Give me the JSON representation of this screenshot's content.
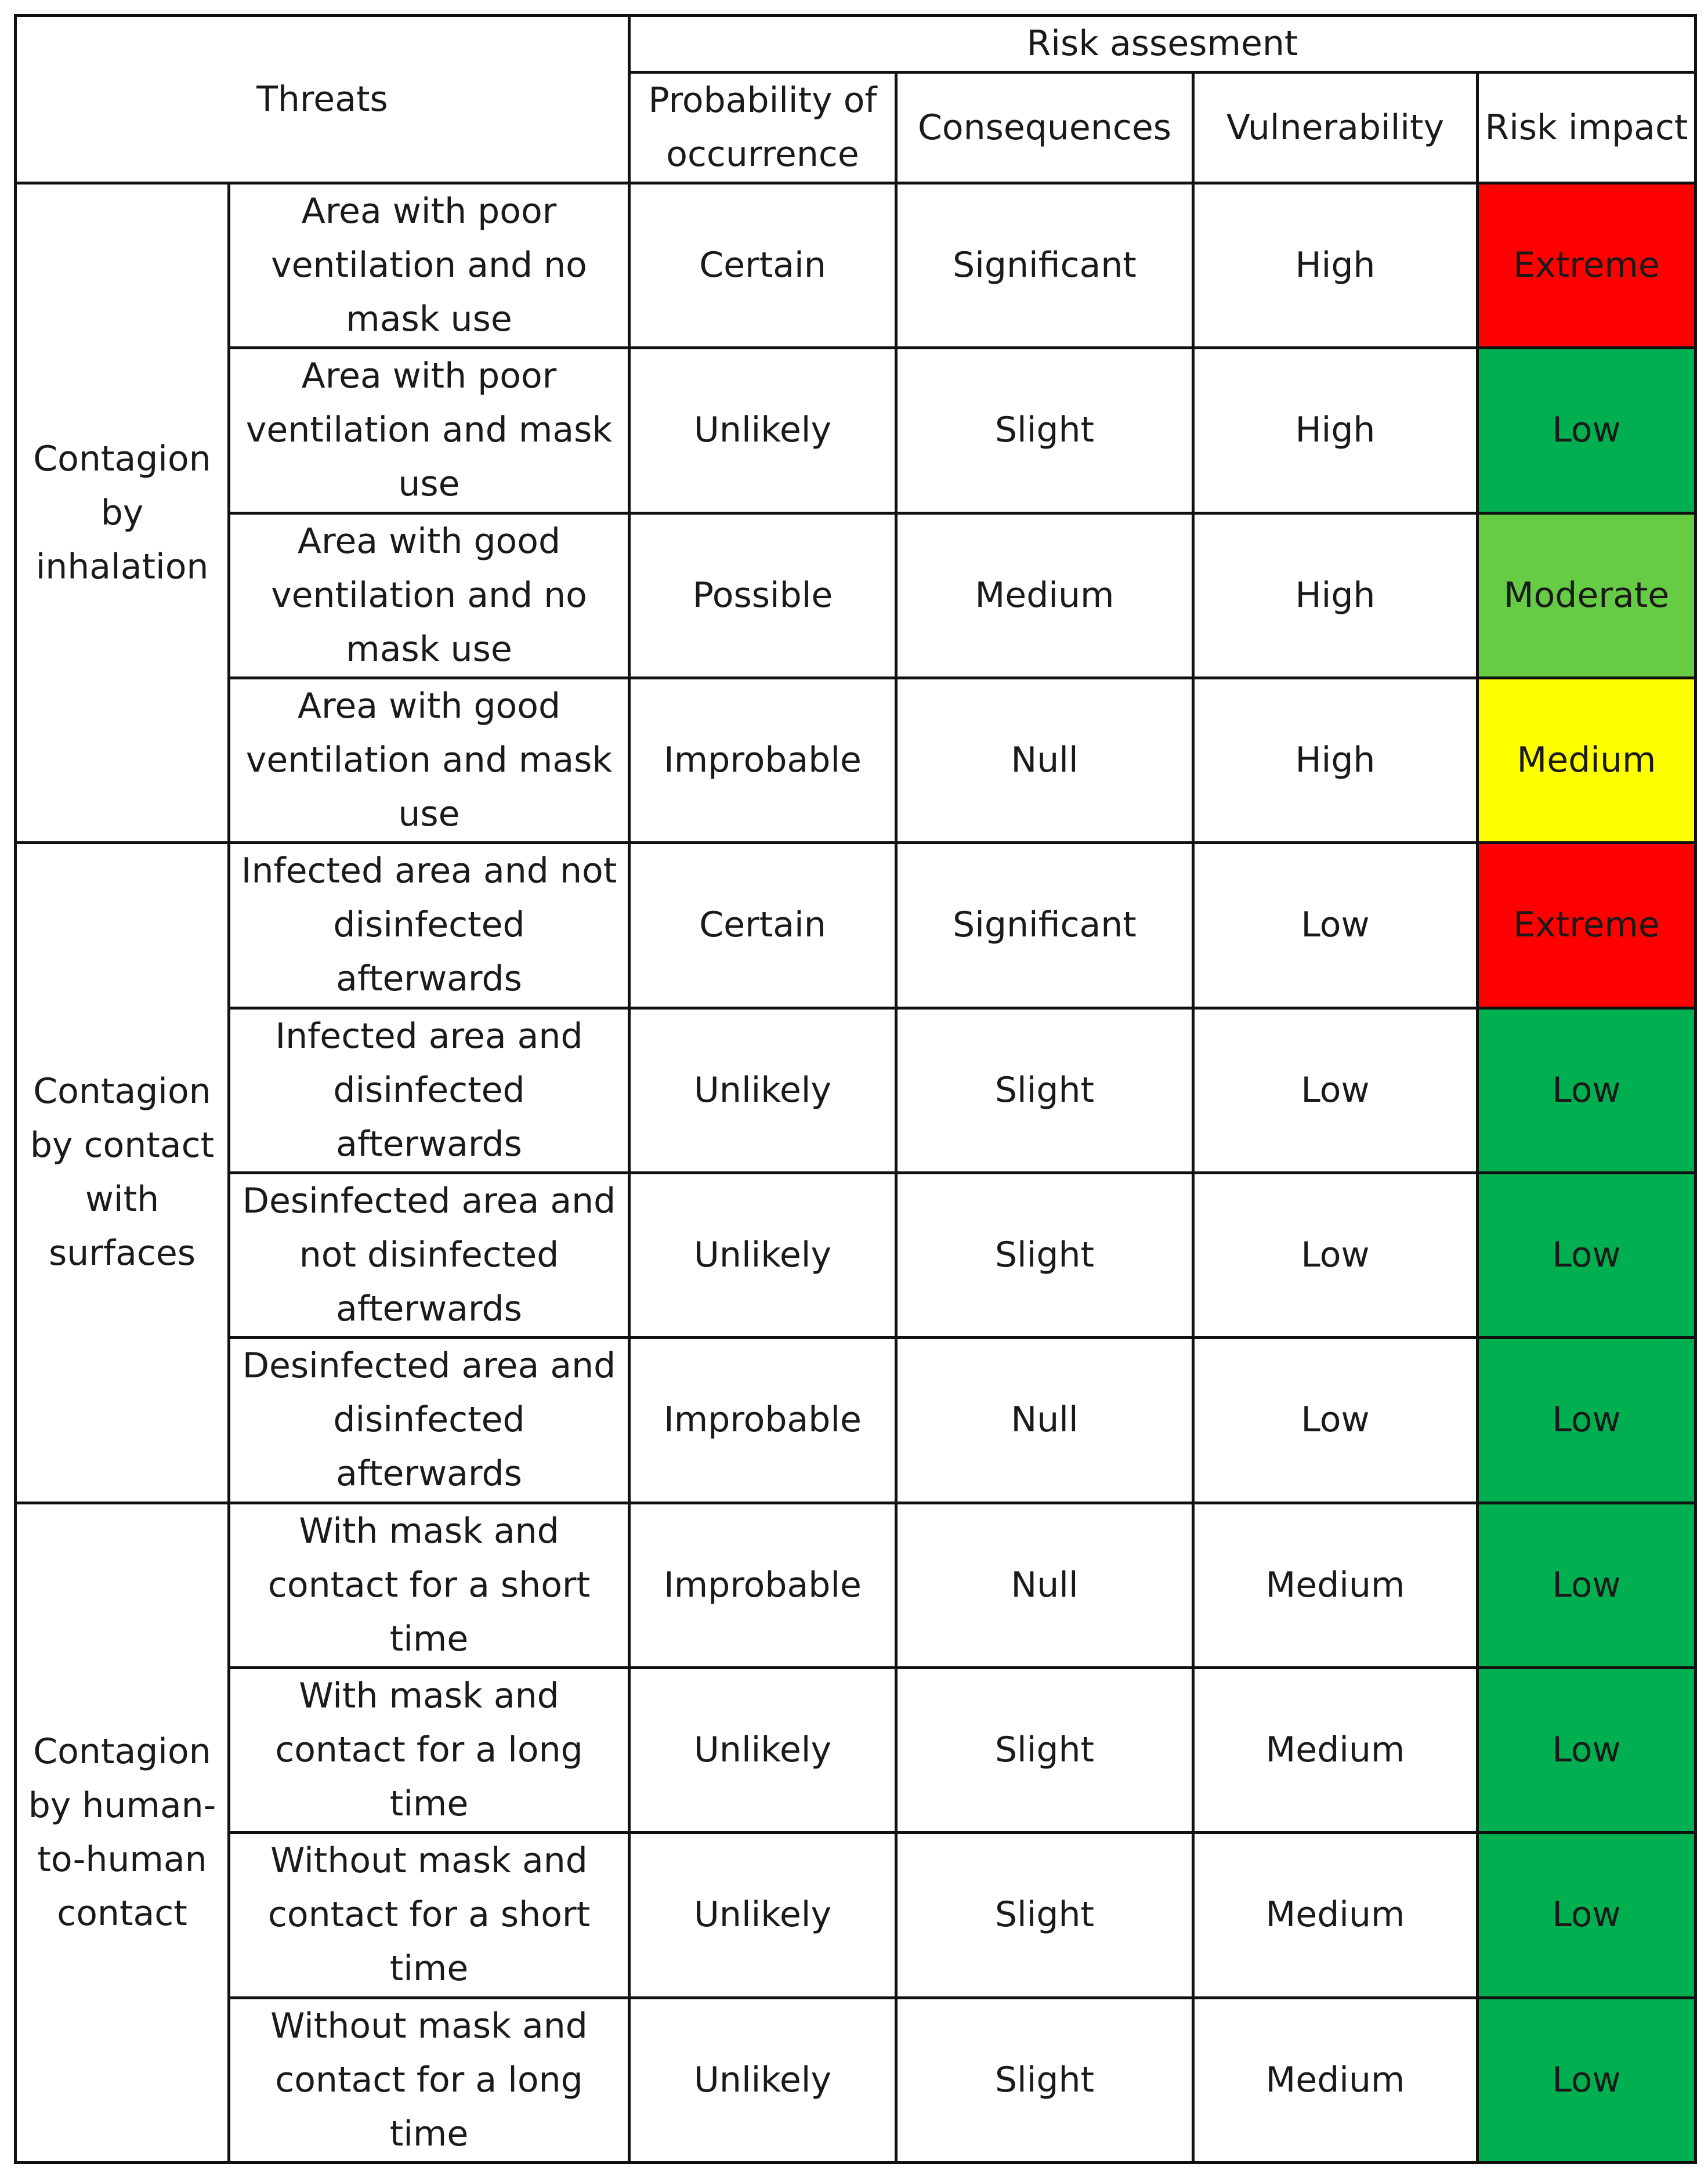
{
  "header": {
    "threats": "Threats",
    "risk_assessment": "Risk assesment",
    "columns": [
      "Probability of occurrence",
      "Consequences",
      "Vulnerability",
      "Risk impact"
    ]
  },
  "impact_colors": {
    "Extreme": "#ff0000",
    "Low": "#00b050",
    "Moderate": "#66cc44",
    "Medium": "#ffff00"
  },
  "groups": [
    {
      "name": "Contagion by inhalation",
      "rows": [
        {
          "threat": "Area with poor ventilation and no mask use",
          "probability": "Certain",
          "consequences": "Significant",
          "vulnerability": "High",
          "impact": "Extreme"
        },
        {
          "threat": "Area with poor ventilation and mask use",
          "probability": "Unlikely",
          "consequences": "Slight",
          "vulnerability": "High",
          "impact": "Low"
        },
        {
          "threat": "Area with good ventilation and no mask use",
          "probability": "Possible",
          "consequences": "Medium",
          "vulnerability": "High",
          "impact": "Moderate"
        },
        {
          "threat": "Area with good ventilation and mask use",
          "probability": "Improbable",
          "consequences": "Null",
          "vulnerability": "High",
          "impact": "Medium"
        }
      ]
    },
    {
      "name": "Contagion by contact with surfaces",
      "rows": [
        {
          "threat": "Infected area and not disinfected afterwards",
          "probability": "Certain",
          "consequences": "Significant",
          "vulnerability": "Low",
          "impact": "Extreme"
        },
        {
          "threat": "Infected area and disinfected afterwards",
          "probability": "Unlikely",
          "consequences": "Slight",
          "vulnerability": "Low",
          "impact": "Low"
        },
        {
          "threat": "Desinfected area and not disinfected afterwards",
          "probability": "Unlikely",
          "consequences": "Slight",
          "vulnerability": "Low",
          "impact": "Low"
        },
        {
          "threat": "Desinfected area and disinfected afterwards",
          "probability": "Improbable",
          "consequences": "Null",
          "vulnerability": "Low",
          "impact": "Low"
        }
      ]
    },
    {
      "name": "Contagion by human-to-human contact",
      "rows": [
        {
          "threat": "With mask and contact for a short time",
          "probability": "Improbable",
          "consequences": "Null",
          "vulnerability": "Medium",
          "impact": "Low"
        },
        {
          "threat": "With mask and contact for a long time",
          "probability": "Unlikely",
          "consequences": "Slight",
          "vulnerability": "Medium",
          "impact": "Low"
        },
        {
          "threat": "Without mask and contact for a short time",
          "probability": "Unlikely",
          "consequences": "Slight",
          "vulnerability": "Medium",
          "impact": "Low"
        },
        {
          "threat": "Without mask and contact for a long time",
          "probability": "Unlikely",
          "consequences": "Slight",
          "vulnerability": "Medium",
          "impact": "Low"
        }
      ]
    }
  ]
}
